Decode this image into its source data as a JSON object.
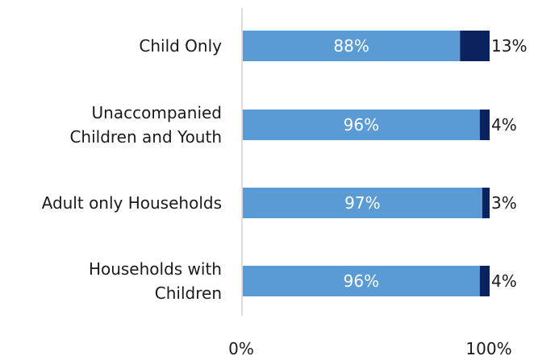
{
  "chart_data": {
    "type": "bar",
    "orientation": "horizontal",
    "stacked": true,
    "categories": [
      [
        "Child Only"
      ],
      [
        "Unaccompanied",
        "Children and Youth"
      ],
      [
        "Adult only Households"
      ],
      [
        "Households with",
        "Children"
      ]
    ],
    "series": [
      {
        "values": [
          88,
          96,
          97,
          96
        ],
        "labels": [
          "88%",
          "96%",
          "97%",
          "96%"
        ],
        "color": "#5b9bd5",
        "label_position": "inside"
      },
      {
        "values": [
          13,
          4,
          3,
          4
        ],
        "labels": [
          "13%",
          "4%",
          "3%",
          "4%"
        ],
        "color": "#0b2260",
        "label_position": "outside-end"
      }
    ],
    "xlim": [
      0,
      100
    ],
    "x_ticks": [
      "0%",
      "100%"
    ],
    "grid": false,
    "legend": "none"
  }
}
